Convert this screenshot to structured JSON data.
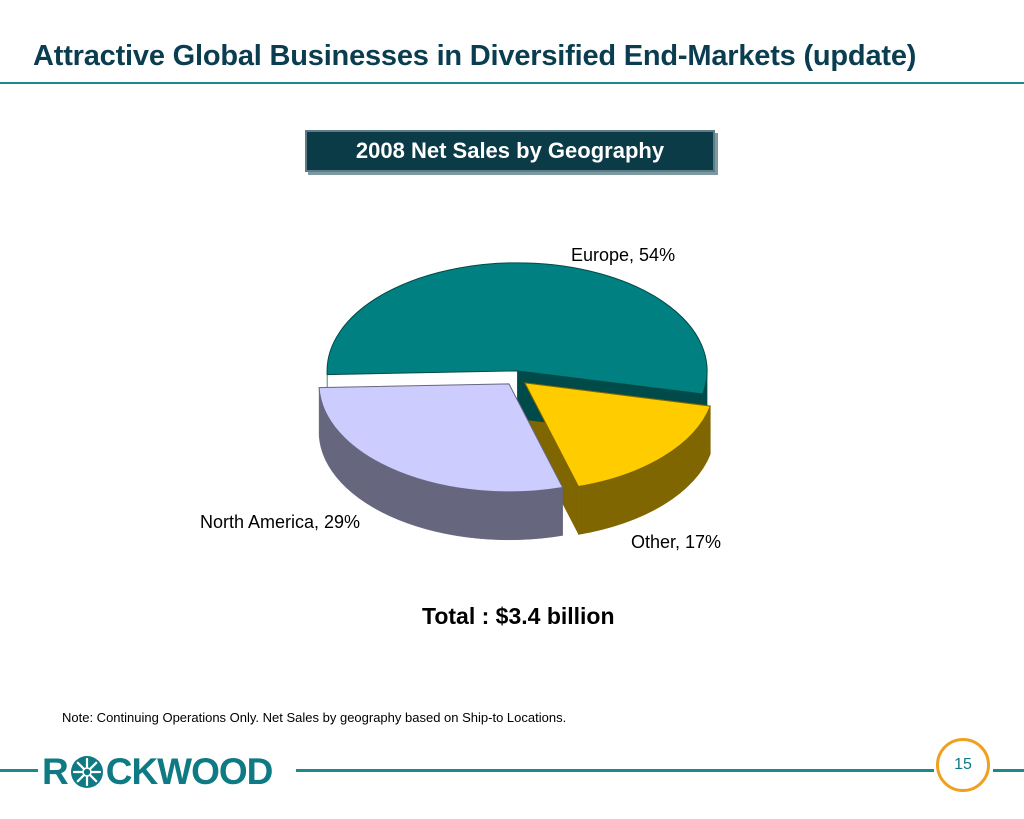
{
  "slide": {
    "title": "Attractive Global Businesses in Diversified End-Markets (update)",
    "chart_heading": "2008 Net Sales by Geography",
    "total_label": "Total : $3.4 billion",
    "note": "Note: Continuing Operations Only. Net Sales by geography based on Ship-to Locations.",
    "page_number": "15"
  },
  "logo": {
    "text_left": "R",
    "text_right": "CKWOOD",
    "icon": "star-burst-icon",
    "color": "#0f7a83"
  },
  "colors": {
    "title": "#0a3d4f",
    "accent_rule": "#1a8a8a",
    "page_circle": "#f0a020"
  },
  "chart_data": {
    "type": "pie",
    "title": "2008 Net Sales by Geography",
    "style": "3d-exploded",
    "slices": [
      {
        "label": "Europe, 54%",
        "name": "Europe",
        "value": 54,
        "color": "#008080",
        "side_color": "#014a4a"
      },
      {
        "label": "Other, 17%",
        "name": "Other",
        "value": 17,
        "color": "#ffcc00",
        "side_color": "#7f6600"
      },
      {
        "label": "North America, 29%",
        "name": "North America",
        "value": 29,
        "color": "#ccccff",
        "side_color": "#66667f"
      }
    ],
    "unit": "%"
  }
}
